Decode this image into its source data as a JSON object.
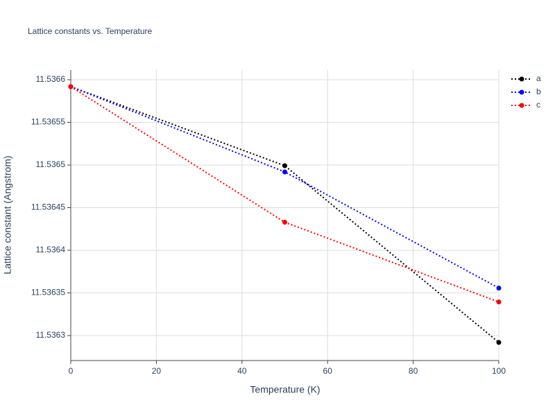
{
  "chart_data": {
    "type": "line",
    "title": "Lattice constants vs. Temperature",
    "x_label": "Temperature (K)",
    "y_label": "Lattice constant (Angstrom)",
    "x": [
      0,
      50,
      100
    ],
    "series": [
      {
        "name": "a",
        "color": "#000000",
        "values": [
          11.5365919,
          11.5364992,
          11.5362919
        ]
      },
      {
        "name": "b",
        "color": "#0000ff",
        "values": [
          11.5365919,
          11.5364919,
          11.5363557
        ]
      },
      {
        "name": "c",
        "color": "#ff0000",
        "values": [
          11.5365919,
          11.5364329,
          11.5363394
        ]
      }
    ],
    "xlim": [
      0,
      100
    ],
    "xticks": [
      0,
      20,
      40,
      60,
      80,
      100
    ],
    "ylim": [
      11.5362707,
      11.5366114
    ],
    "yticks": [
      11.5363,
      11.53635,
      11.5364,
      11.53645,
      11.5365,
      11.53655,
      11.5366
    ],
    "grid": true,
    "legend": "top-right"
  }
}
